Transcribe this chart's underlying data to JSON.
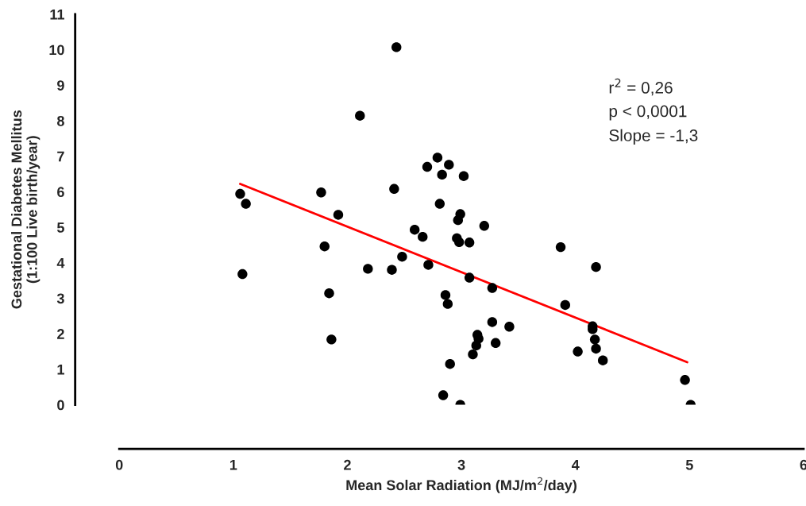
{
  "chart_data": {
    "type": "scatter",
    "xlabel": "Mean Solar Radiation (MJ/m$^{2}$/day)",
    "ylabel": "Gestational Diabetes Mellitus\n(1:100 Live birth/year)",
    "annotations": [
      "r$^{2}$ = 0,26",
      "p < 0,0001",
      "Slope = -1,3"
    ],
    "xlim": [
      0,
      6
    ],
    "xticks": [
      0,
      1,
      2,
      3,
      4,
      5,
      6
    ],
    "ylim": [
      0,
      11
    ],
    "yticks": [
      0,
      1,
      2,
      3,
      4,
      5,
      6,
      7,
      8,
      9,
      10,
      11
    ],
    "grid": false,
    "legend": false,
    "series": [
      {
        "color": "#000000",
        "marker": "circle",
        "x": [
          1.06,
          1.11,
          1.08,
          1.77,
          1.8,
          1.84,
          1.86,
          1.92,
          2.11,
          2.18,
          2.43,
          2.41,
          2.39,
          2.48,
          2.59,
          2.66,
          2.71,
          2.7,
          2.79,
          2.89,
          2.83,
          3.02,
          2.81,
          2.99,
          2.97,
          3.2,
          2.96,
          2.98,
          3.07,
          3.07,
          3.27,
          2.86,
          2.88,
          3.27,
          3.42,
          3.14,
          3.15,
          3.13,
          3.3,
          3.1,
          2.9,
          2.84,
          2.99,
          3.87,
          4.18,
          3.91,
          4.15,
          4.15,
          4.17,
          4.18,
          4.24,
          4.02,
          4.96,
          5.01
        ],
        "values": [
          5.94,
          5.66,
          3.68,
          5.98,
          4.46,
          3.14,
          1.84,
          5.35,
          8.14,
          3.83,
          10.07,
          6.08,
          3.8,
          4.17,
          4.93,
          4.73,
          3.94,
          6.7,
          6.96,
          6.76,
          6.48,
          6.44,
          5.66,
          5.37,
          5.2,
          5.04,
          4.69,
          4.58,
          4.57,
          3.58,
          3.29,
          3.09,
          2.84,
          2.33,
          2.2,
          1.97,
          1.86,
          1.67,
          1.74,
          1.42,
          1.15,
          0.27,
          0,
          4.44,
          3.88,
          2.81,
          2.21,
          2.13,
          1.84,
          1.58,
          1.25,
          1.5,
          0.7,
          0
        ]
      },
      {
        "type": "line",
        "color": "#ff0000",
        "line_style": "solid",
        "marker": "none",
        "x": [
          1.06,
          4.98
        ],
        "values": [
          6.22,
          1.2
        ]
      }
    ]
  }
}
